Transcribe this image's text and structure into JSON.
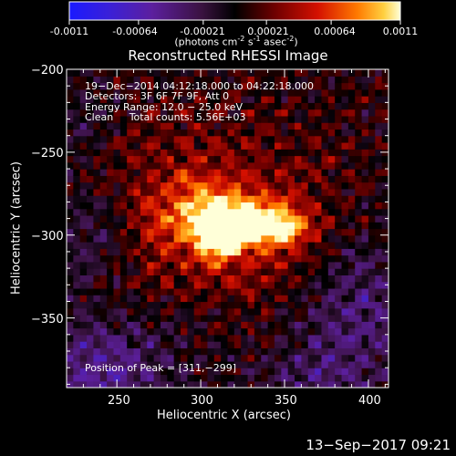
{
  "colorbar": {
    "ticks": [
      "-0.0011",
      "-0.00064",
      "-0.00021",
      "0.00021",
      "0.00064",
      "0.0011"
    ],
    "tick_values": [
      -0.0011,
      -0.00064,
      -0.00021,
      0.00021,
      0.00064,
      0.0011
    ],
    "unit_main": "(photons cm",
    "unit_sup1": "-2",
    "unit_mid": " s",
    "unit_sup2": "-1",
    "unit_mid2": " asec",
    "unit_sup3": "-2",
    "unit_end": ")"
  },
  "chart_data": {
    "type": "heatmap",
    "title": "Reconstructed RHESSI Image",
    "xlabel": "Heliocentric X (arcsec)",
    "ylabel": "Heliocentric Y (arcsec)",
    "xlim": [
      220,
      412
    ],
    "ylim": [
      -392,
      -200
    ],
    "x_ticks": [
      250,
      300,
      350,
      400
    ],
    "y_ticks": [
      -200,
      -250,
      -300,
      -350
    ],
    "x_tick_labels": [
      "250",
      "300",
      "350",
      "400"
    ],
    "y_tick_labels": [
      "−200",
      "−250",
      "−300",
      "−350"
    ],
    "zlim": [
      -0.0011,
      0.0011
    ],
    "peak": [
      311,
      -299
    ],
    "colormap": "hot-with-blue-purple-negatives",
    "annotations": {
      "line1": "19−Dec−2014 04:12:18.000 to 04:22:18.000",
      "line2": "Detectors: 3F 6F 7F 9F, Att 0",
      "line3": "Energy Range: 12.0 − 25.0 keV",
      "line4": "Clean     Total counts: 5.56E+03",
      "peak_label": "Position of Peak = [311,−299]"
    }
  },
  "footer": {
    "timestamp": "13−Sep−2017 09:21"
  }
}
